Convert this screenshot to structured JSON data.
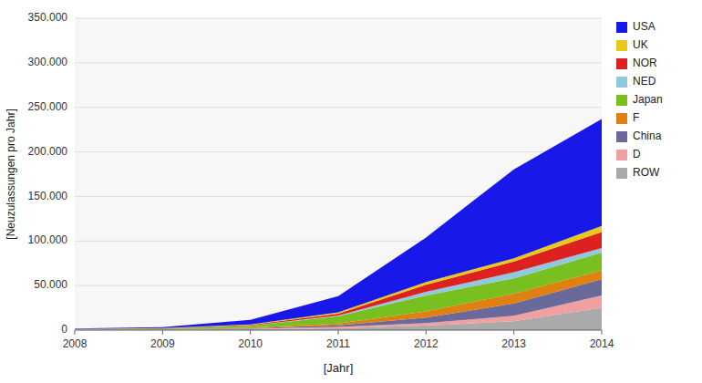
{
  "chart_data": {
    "type": "area",
    "stacked": true,
    "xlabel": "[Jahr]",
    "ylabel": "[Neuzulassungen pro Jahr]",
    "x": [
      2008,
      2009,
      2010,
      2011,
      2012,
      2013,
      2014
    ],
    "xlim": [
      2008,
      2014
    ],
    "xticks": [
      2008,
      2009,
      2010,
      2011,
      2012,
      2013,
      2014
    ],
    "ylim": [
      0,
      350000
    ],
    "yticks": [
      0,
      {
        "value": 50000,
        "label": "50.000"
      },
      {
        "value": 100000,
        "label": "100.000"
      },
      {
        "value": 150000,
        "label": "150.000"
      },
      {
        "value": 200000,
        "label": "200.000"
      },
      {
        "value": 250000,
        "label": "250.000"
      },
      {
        "value": 300000,
        "label": "300.000"
      },
      {
        "value": 350000,
        "label": "350.000"
      }
    ],
    "grid": true,
    "legend": "right",
    "series": [
      {
        "name": "ROW",
        "color": "#aaaaaa",
        "values": [
          300,
          500,
          1000,
          2000,
          5000,
          10000,
          25000
        ]
      },
      {
        "name": "D",
        "color": "#f0a0a0",
        "values": [
          100,
          200,
          500,
          1500,
          3000,
          6000,
          14000
        ]
      },
      {
        "name": "China",
        "color": "#6a6a9a",
        "values": [
          100,
          200,
          600,
          2000,
          6000,
          14000,
          18000
        ]
      },
      {
        "name": "F",
        "color": "#e08010",
        "values": [
          100,
          200,
          600,
          2000,
          7000,
          11000,
          10000
        ]
      },
      {
        "name": "Japan",
        "color": "#78c020",
        "values": [
          300,
          600,
          2200,
          8000,
          18000,
          17000,
          20000
        ]
      },
      {
        "name": "NED",
        "color": "#90c8e0",
        "values": [
          100,
          100,
          300,
          1000,
          4000,
          7000,
          5000
        ]
      },
      {
        "name": "NOR",
        "color": "#dd2020",
        "values": [
          100,
          200,
          700,
          2000,
          8000,
          12000,
          18000
        ]
      },
      {
        "name": "UK",
        "color": "#e8c818",
        "values": [
          100,
          200,
          600,
          1500,
          3000,
          3500,
          7000
        ]
      },
      {
        "name": "USA",
        "color": "#1818e8",
        "values": [
          500,
          1200,
          5000,
          18000,
          50000,
          100000,
          120000
        ]
      }
    ]
  }
}
